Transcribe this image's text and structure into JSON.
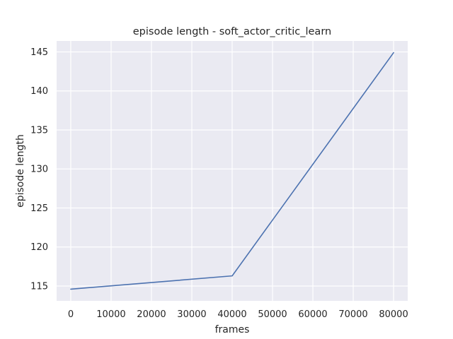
{
  "chart_data": {
    "type": "line",
    "title": "episode length - soft_actor_critic_learn",
    "xlabel": "frames",
    "ylabel": "episode length",
    "x": [
      0,
      40000,
      80000
    ],
    "series": [
      {
        "values": [
          114.6,
          116.3,
          144.9
        ]
      }
    ],
    "xlim": [
      -3500,
      83500
    ],
    "ylim": [
      113.1,
      146.4
    ],
    "xticks": [
      0,
      10000,
      20000,
      30000,
      40000,
      50000,
      60000,
      70000,
      80000
    ],
    "xtick_labels": [
      "0",
      "10000",
      "20000",
      "30000",
      "40000",
      "50000",
      "60000",
      "70000",
      "80000"
    ],
    "yticks": [
      115,
      120,
      125,
      130,
      135,
      140,
      145
    ],
    "ytick_labels": [
      "115",
      "120",
      "125",
      "130",
      "135",
      "140",
      "145"
    ],
    "grid": true,
    "colors": {
      "background": "#eaeaf2",
      "grid": "#ffffff",
      "line": "#4c72b0",
      "text": "#262626"
    }
  }
}
